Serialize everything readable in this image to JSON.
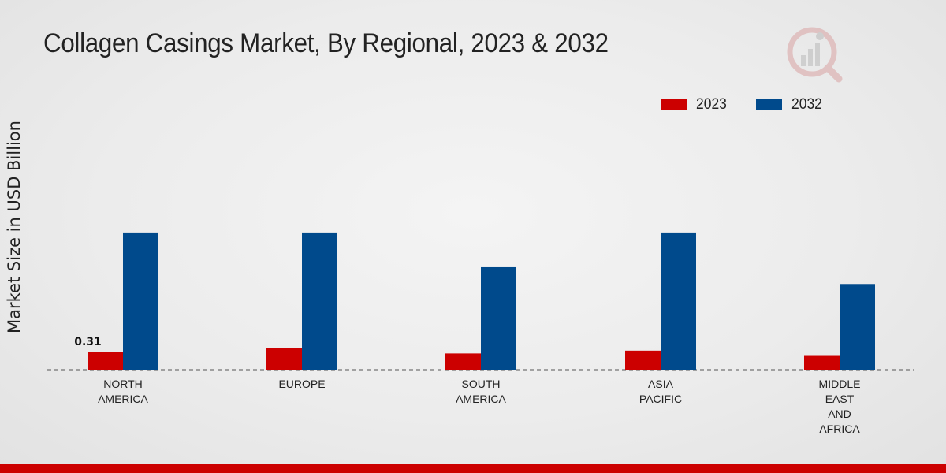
{
  "chart_data": {
    "type": "bar",
    "title": "Collagen Casings Market, By Regional, 2023 & 2032",
    "ylabel": "Market Size in USD Billion",
    "xlabel": "",
    "categories": [
      [
        "NORTH",
        "AMERICA"
      ],
      [
        "EUROPE"
      ],
      [
        "SOUTH",
        "AMERICA"
      ],
      [
        "ASIA",
        "PACIFIC"
      ],
      [
        "MIDDLE",
        "EAST",
        "AND",
        "AFRICA"
      ]
    ],
    "series": [
      {
        "name": "2023",
        "color": "#cc0000",
        "values": [
          0.31,
          0.39,
          0.29,
          0.34,
          0.26
        ]
      },
      {
        "name": "2032",
        "color": "#004a8c",
        "values": [
          2.45,
          2.45,
          1.83,
          2.45,
          1.53
        ]
      }
    ],
    "data_labels": [
      {
        "series": 0,
        "index": 0,
        "text": "0.31"
      }
    ],
    "ylim": [
      0,
      6.6
    ],
    "grid": false,
    "legend_position": "top-right"
  },
  "colors": {
    "accent": "#cc0000",
    "brand": "#004a8c"
  },
  "logo_icon": "market-research-logo-icon"
}
